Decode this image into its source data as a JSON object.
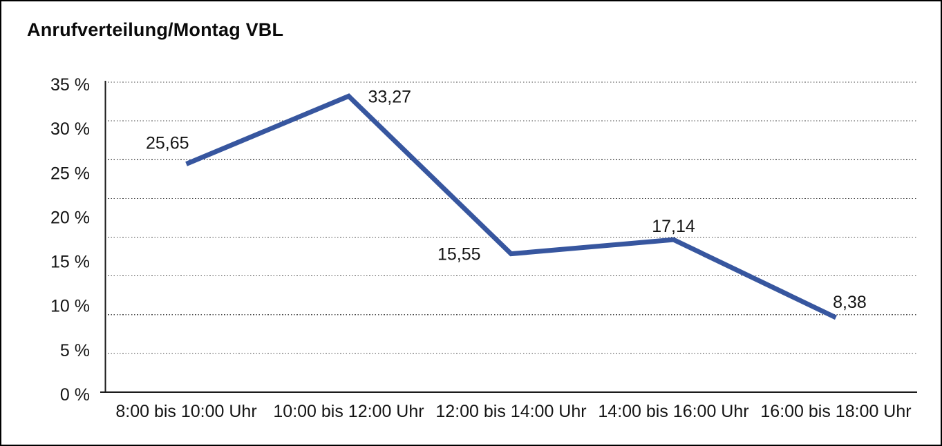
{
  "chart_data": {
    "type": "line",
    "title": "Anrufverteilung/Montag VBL",
    "categories": [
      "8:00 bis 10:00 Uhr",
      "10:00 bis 12:00 Uhr",
      "12:00 bis 14:00 Uhr",
      "14:00 bis 16:00 Uhr",
      "16:00 bis 18:00 Uhr"
    ],
    "values": [
      25.65,
      33.27,
      15.55,
      17.14,
      8.38
    ],
    "point_labels": [
      "25,65",
      "33,27",
      "15,55",
      "17,14",
      "8,38"
    ],
    "y_ticks": [
      "35 %",
      "30 %",
      "25 %",
      "20 %",
      "15 %",
      "10 %",
      "5 %",
      "0 %"
    ],
    "ylim": [
      0,
      35
    ],
    "xlabel": "",
    "ylabel": "",
    "legend_position": "none",
    "grid": "horizontal-dotted",
    "gridline_divisions": 8,
    "line_color": "#37569F",
    "axis_color": "#1a1a1a",
    "grid_color": "#4d4d4d",
    "text_color": "#141414",
    "background_color": "#ffffff",
    "border_color": "#000000"
  }
}
